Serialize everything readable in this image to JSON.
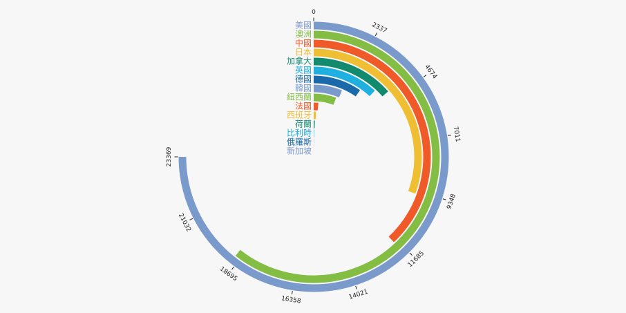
{
  "chart_data": {
    "type": "radial-bar",
    "categories": [
      "美國",
      "澳洲",
      "中國",
      "日本",
      "加拿大",
      "英國",
      "德國",
      "韓國",
      "紐西蘭",
      "法國",
      "西班牙",
      "荷蘭",
      "比利時",
      "俄羅斯",
      "新加坡"
    ],
    "values": [
      23369,
      18895,
      11840,
      9512,
      4215,
      3696,
      3012,
      2000,
      1800,
      430,
      250,
      150,
      80,
      40,
      20
    ],
    "colors": [
      "#7b9acc",
      "#84bd44",
      "#f05a28",
      "#f0be32",
      "#128a6e",
      "#1fb0e0",
      "#1a6aab",
      "#7b9acc",
      "#84bd44",
      "#f05a28",
      "#f0be32",
      "#128a6e",
      "#1fb0e0",
      "#1a6aab",
      "#7b9acc"
    ],
    "xlim": [
      0,
      23369
    ],
    "xticks": [
      0,
      2337,
      4674,
      7011,
      9348,
      11685,
      14021,
      16358,
      18695,
      21032,
      23369
    ]
  }
}
